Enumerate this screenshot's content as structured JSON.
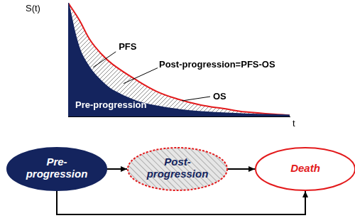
{
  "chart_data": {
    "type": "line",
    "x_label": "t",
    "y_label": "S(t)",
    "x": [
      0,
      0.5,
      1,
      1.5,
      2,
      3,
      4,
      5,
      6,
      7,
      8,
      10
    ],
    "series": [
      {
        "name": "PFS",
        "color": "#14245e",
        "values": [
          1.0,
          0.6,
          0.42,
          0.31,
          0.23,
          0.14,
          0.09,
          0.06,
          0.04,
          0.03,
          0.02,
          0.01
        ]
      },
      {
        "name": "OS",
        "color": "#e31a1c",
        "values": [
          1.0,
          0.85,
          0.67,
          0.55,
          0.46,
          0.33,
          0.22,
          0.15,
          0.1,
          0.07,
          0.04,
          0.01
        ]
      }
    ],
    "annotations": [
      {
        "text": "Post-progression=PFS-OS"
      },
      {
        "text": "Pre-progression"
      }
    ],
    "xlim": [
      0,
      10
    ],
    "ylim": [
      0,
      1
    ],
    "tick_labels": false,
    "grid": false
  },
  "diagram": {
    "nodes": [
      {
        "label_lines": [
          "Pre-",
          "progression"
        ]
      },
      {
        "label_lines": [
          "Post-",
          "progression"
        ]
      },
      {
        "label_lines": [
          "Death"
        ]
      }
    ],
    "edges": [
      {
        "from": 0,
        "to": 1
      },
      {
        "from": 1,
        "to": 2
      },
      {
        "from": 0,
        "to": 2
      }
    ]
  }
}
